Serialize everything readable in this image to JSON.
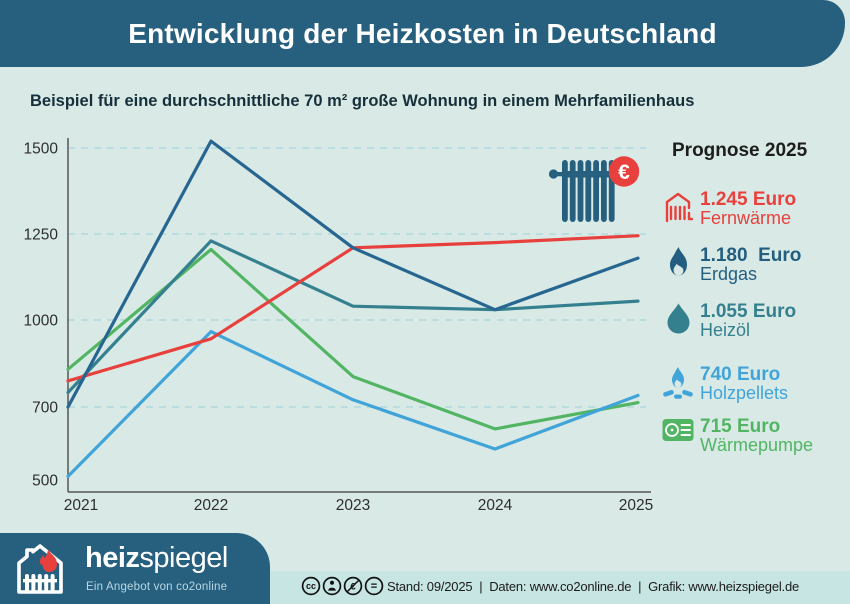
{
  "header": {
    "title": "Entwicklung der Heizkosten in Deutschland"
  },
  "subtitle": "Beispiel für eine durchschnittliche 70 m² große Wohnung in einem Mehrfamilienhaus",
  "colors": {
    "header_bg": "#27607f",
    "page_bg": "#d9eae6",
    "footer_strip_bg": "#c7e5e2",
    "gridline": "#b5dbde",
    "axis": "#555555",
    "accent_red": "#e8403d"
  },
  "chart_data": {
    "type": "line",
    "title": "",
    "xlabel": "",
    "ylabel": "",
    "categories": [
      "2021",
      "2022",
      "2023",
      "2024",
      "2025"
    ],
    "yticks": [
      1500,
      1250,
      1000,
      700,
      500
    ],
    "ylim": [
      500,
      1520
    ],
    "grid": "horizontal-dashed",
    "legend_position": "right",
    "series": [
      {
        "name": "Fernwärme",
        "color": "#e8403d",
        "values": [
          790,
          935,
          1210,
          1225,
          1245
        ]
      },
      {
        "name": "Erdgas",
        "color": "#266690",
        "values": [
          700,
          1520,
          1210,
          1030,
          1180
        ]
      },
      {
        "name": "Heizöl",
        "color": "#35808f",
        "values": [
          750,
          1230,
          1040,
          1030,
          1055
        ]
      },
      {
        "name": "Holzpellets",
        "color": "#41a4d8",
        "values": [
          510,
          960,
          725,
          585,
          740
        ]
      },
      {
        "name": "Wärmepumpe",
        "color": "#52b563",
        "values": [
          830,
          1205,
          805,
          640,
          715
        ]
      }
    ]
  },
  "chart_annotation": {
    "icon": "radiator-icon",
    "badge": "€"
  },
  "legend": {
    "title": "Prognose 2025",
    "items": [
      {
        "value": "1.245 Euro",
        "label": "Fernwärme",
        "color": "#e8403d",
        "icon": "district-heating-icon"
      },
      {
        "value": "1.180  Euro",
        "label": "Erdgas",
        "color": "#235e80",
        "icon": "gas-flame-icon"
      },
      {
        "value": "1.055 Euro",
        "label": "Heizöl",
        "color": "#35808f",
        "icon": "oil-drop-icon"
      },
      {
        "value": "740 Euro",
        "label": "Holzpellets",
        "color": "#41a4d8",
        "icon": "wood-fire-icon"
      },
      {
        "value": "715 Euro",
        "label": "Wärmepumpe",
        "color": "#52b563",
        "icon": "heat-pump-icon"
      }
    ]
  },
  "footer": {
    "logo_bold": "heiz",
    "logo_regular": "spiegel",
    "logo_tagline": "Ein Angebot von co2online",
    "license_icons": [
      "cc",
      "by",
      "nc",
      "nd"
    ],
    "info": "Stand: 09/2025  |  Daten: www.co2online.de  |  Grafik: www.heizspiegel.de"
  }
}
